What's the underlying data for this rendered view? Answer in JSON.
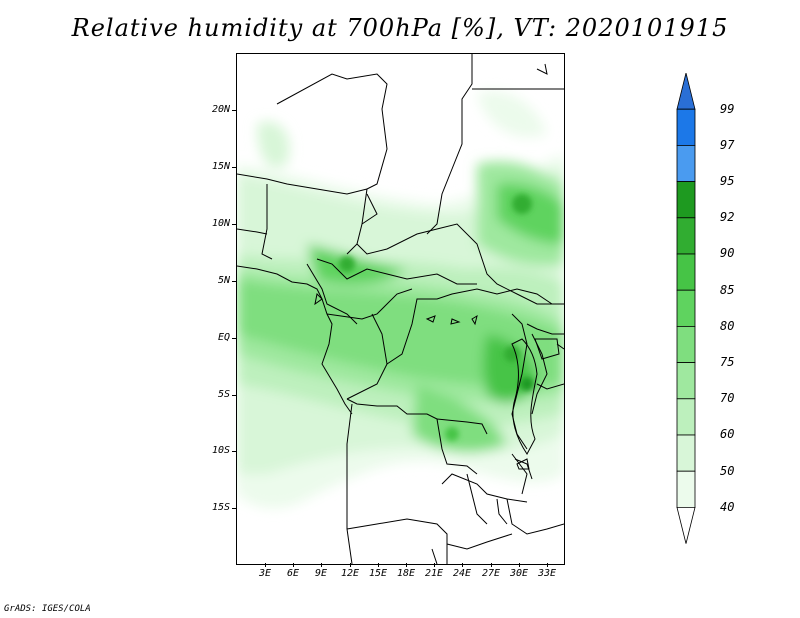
{
  "title": "Relative humidity at 700hPa [%], VT: 2020101915",
  "lat_labels": [
    "20N",
    "15N",
    "10N",
    "5N",
    "EQ",
    "5S",
    "10S",
    "15S"
  ],
  "lon_labels": [
    "3E",
    "6E",
    "9E",
    "12E",
    "15E",
    "18E",
    "21E",
    "24E",
    "27E",
    "30E",
    "33E"
  ],
  "colorbar": {
    "levels": [
      "99",
      "97",
      "95",
      "92",
      "90",
      "85",
      "80",
      "75",
      "70",
      "60",
      "50",
      "40"
    ],
    "colors": [
      "#2a6fd6",
      "#1c78e8",
      "#4a9bf0",
      "#1e9a20",
      "#31ad31",
      "#46c446",
      "#5fd35f",
      "#7fde7f",
      "#9fe89f",
      "#bdf0bd",
      "#d8f6d8",
      "#ecfbec",
      "#ffffff"
    ]
  },
  "credit": "GrADS: IGES/COLA"
}
